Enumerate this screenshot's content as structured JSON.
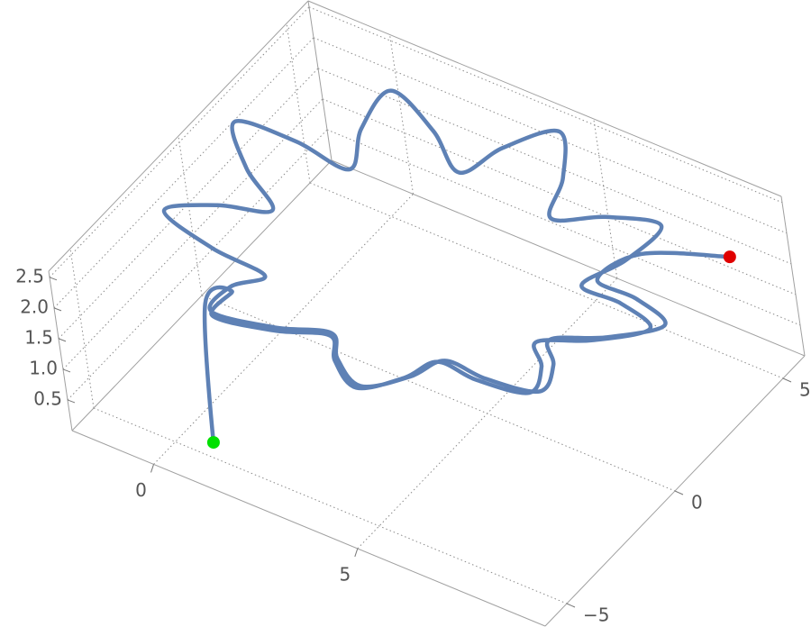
{
  "chart_data": {
    "type": "line3d",
    "x": [
      0.8,
      0.4,
      0.85,
      1.09,
      2.26,
      3.13,
      3.82,
      4.83,
      5.33,
      5.46,
      6.63,
      7.95,
      7.55,
      6.86,
      7.98,
      8.99,
      7.87,
      6.7,
      7.23,
      7.45,
      6.15,
      5.03,
      4.74,
      4.08,
      3.18,
      2.65,
      1.67,
      0.43,
      0.37,
      0.67,
      -0.55,
      -1.79,
      -0.98,
      0.01,
      -0.87,
      -1.53,
      -0.23,
      0.98,
      0.74,
      1.0,
      2.2,
      3.11,
      3.83,
      4.88,
      5.41,
      5.57,
      6.77,
      8.11,
      7.73,
      7.06,
      8.18,
      9.19,
      8.06,
      6.88,
      7.4,
      9.0
    ],
    "y": [
      -4.7,
      -3.6,
      -3.14,
      -4.44,
      -3.82,
      -2.98,
      -3.99,
      -4.84,
      -3.61,
      -2.4,
      -2.74,
      -2.73,
      -1.47,
      -0.47,
      0.03,
      0.89,
      1.59,
      1.92,
      3.02,
      4.32,
      4.14,
      3.65,
      4.82,
      5.97,
      4.99,
      3.9,
      4.61,
      5.06,
      3.74,
      2.56,
      2.47,
      2.02,
      0.97,
      0.25,
      -0.59,
      -1.74,
      -2.02,
      -1.93,
      -3.0,
      -4.32,
      -3.72,
      -2.88,
      -3.89,
      -4.73,
      -3.5,
      -2.27,
      -2.58,
      -2.55,
      -1.26,
      -0.22,
      0.31,
      1.2,
      1.94,
      2.31,
      3.43,
      4.5
    ],
    "z": [
      0.1,
      1.85,
      2.0,
      2.15,
      2.0,
      1.85,
      2.0,
      2.15,
      2.0,
      1.85,
      2.0,
      2.15,
      2.0,
      1.85,
      2.0,
      2.15,
      2.0,
      1.85,
      2.0,
      2.15,
      2.0,
      1.85,
      2.0,
      2.15,
      2.0,
      1.85,
      2.0,
      2.15,
      2.0,
      1.85,
      2.0,
      2.15,
      2.0,
      1.85,
      2.0,
      2.15,
      2.0,
      1.85,
      2.0,
      2.15,
      2.0,
      1.85,
      2.0,
      2.15,
      2.0,
      1.85,
      2.0,
      2.15,
      2.0,
      1.85,
      2.0,
      2.15,
      2.0,
      1.85,
      2.0,
      2.0
    ],
    "color": "#5e81b5",
    "start_color": "#00e000",
    "end_color": "#e00000",
    "xlim": [
      -2,
      9.6
    ],
    "ylim": [
      -6,
      6
    ],
    "zlim": [
      0,
      2.6
    ],
    "xticks": [
      0,
      5
    ],
    "yticks": [
      {
        "value": -5,
        "label": "−5"
      },
      0,
      5
    ],
    "zticks": [
      0.5,
      {
        "value": 1,
        "label": "1.0"
      },
      1.5,
      {
        "value": 2,
        "label": "2.0"
      },
      2.5
    ],
    "grid": true
  }
}
